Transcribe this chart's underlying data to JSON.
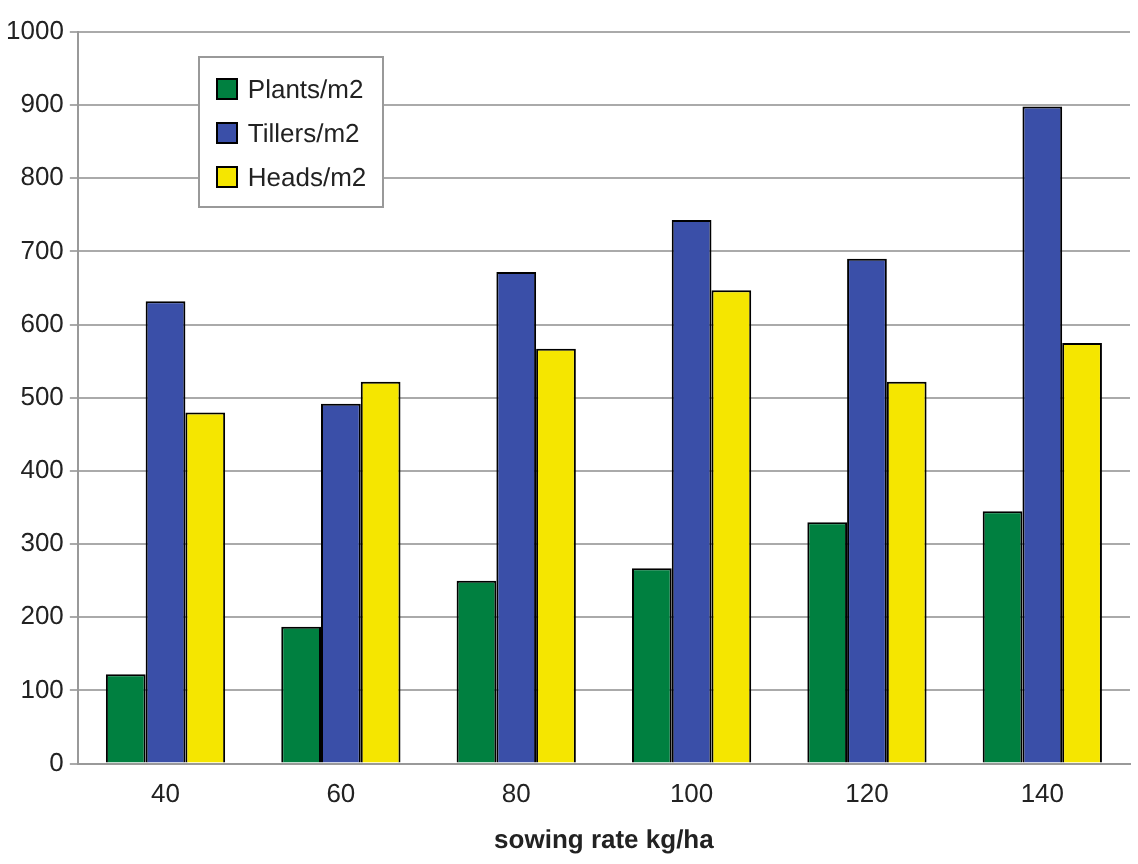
{
  "chart_data": {
    "type": "bar",
    "xlabel": "sowing rate kg/ha",
    "categories": [
      "40",
      "60",
      "80",
      "100",
      "120",
      "140"
    ],
    "series": [
      {
        "name": "Plants/m2",
        "color": "#008040",
        "values": [
          122,
          187,
          250,
          267,
          330,
          345
        ]
      },
      {
        "name": "Tillers/m2",
        "color": "#3a4fa8",
        "values": [
          632,
          492,
          672,
          743,
          690,
          898
        ]
      },
      {
        "name": "Heads/m2",
        "color": "#f5e600",
        "values": [
          480,
          522,
          567,
          647,
          522,
          575
        ]
      }
    ],
    "ylim": [
      0,
      1000
    ],
    "yticks": [
      0,
      100,
      200,
      300,
      400,
      500,
      600,
      700,
      800,
      900,
      1000
    ],
    "grid": "y",
    "legend": "top left"
  }
}
